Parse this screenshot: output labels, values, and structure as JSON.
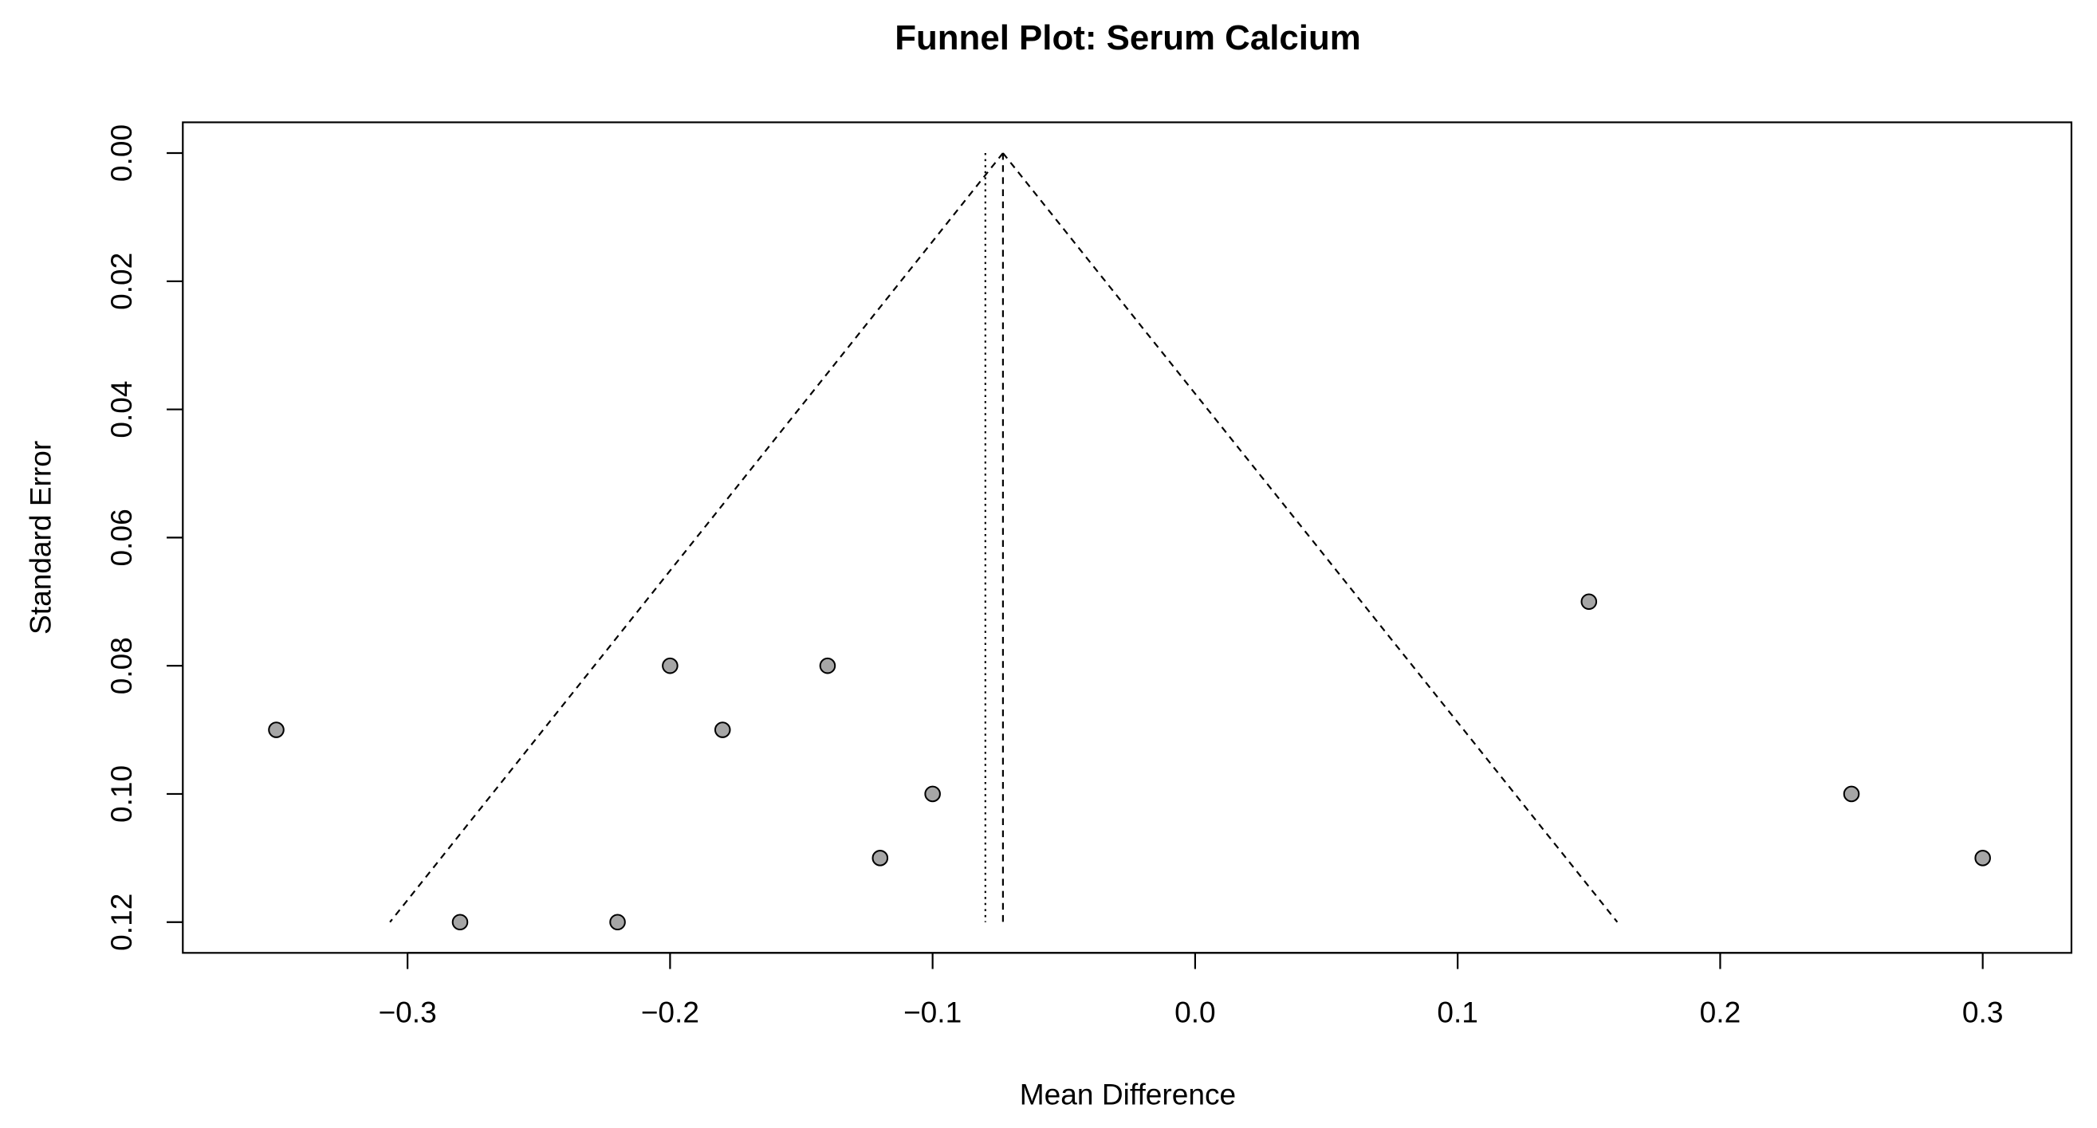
{
  "chart_data": {
    "type": "funnel",
    "title": "Funnel Plot: Serum Calcium",
    "x_label": "Mean Difference",
    "y_label": "Standard Error",
    "x": [
      -0.35,
      -0.28,
      -0.22,
      -0.2,
      -0.18,
      -0.14,
      -0.12,
      -0.1,
      0.15,
      0.25,
      0.3
    ],
    "values": [
      0.09,
      0.12,
      0.12,
      0.08,
      0.09,
      0.08,
      0.11,
      0.1,
      0.07,
      0.1,
      0.11
    ],
    "color": "#a6a6a6",
    "xlim": [
      -0.3856,
      0.3338
    ],
    "ylim": [
      -0.0048,
      0.1248
    ],
    "y_inverted": true,
    "xticks": [
      {
        "value": -0.3,
        "label": "−0.3"
      },
      {
        "value": -0.2,
        "label": "−0.2"
      },
      {
        "value": -0.1,
        "label": "−0.1"
      },
      {
        "value": 0,
        "label": "0.0"
      },
      0.1,
      0.2,
      0.3
    ],
    "yticks": [
      {
        "value": 0,
        "label": "0.00"
      },
      {
        "value": 0.02,
        "label": "0.02"
      },
      {
        "value": 0.04,
        "label": "0.04"
      },
      {
        "value": 0.06,
        "label": "0.06"
      },
      {
        "value": 0.08,
        "label": "0.08"
      },
      {
        "value": 0.1,
        "label": "0.10"
      },
      {
        "value": 0.12,
        "label": "0.12"
      }
    ],
    "summary_estimate": -0.0732,
    "alt_estimate": -0.0799,
    "max_se": 0.12,
    "funnel_limits_at_max_se": [
      -0.3067,
      0.1608
    ]
  }
}
